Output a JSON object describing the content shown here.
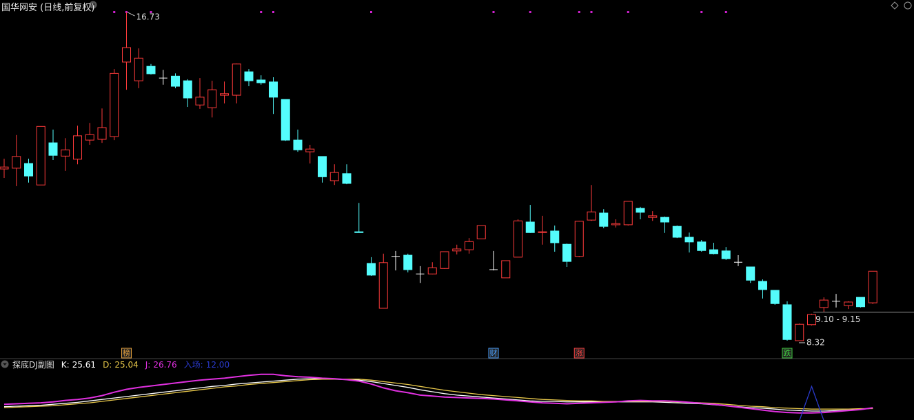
{
  "header": {
    "title": "国华网安 (日线,前复权)"
  },
  "chart_data": [
    {
      "type": "candlestick",
      "ylim": [
        7.86,
        17.05
      ],
      "up_color": "#ff3b3b",
      "down_color": "#54fcfc",
      "flat_color": "#ffffff",
      "open": [
        12.72,
        12.74,
        12.86,
        12.31,
        13.39,
        13.05,
        12.97,
        13.46,
        13.48,
        13.55,
        15.46,
        14.98,
        15.35,
        15.05,
        15.1,
        14.98,
        14.36,
        14.29,
        14.61,
        14.61,
        15.21,
        15.0,
        14.95,
        14.5,
        13.46,
        13.16,
        13.04,
        12.42,
        12.6,
        11.11,
        10.3,
        9.15,
        10.48,
        10.51,
        10.03,
        10.03,
        10.17,
        10.62,
        10.65,
        10.93,
        10.14,
        9.93,
        10.46,
        11.36,
        11.09,
        11.13,
        10.79,
        10.48,
        11.41,
        11.59,
        11.29,
        11.29,
        11.71,
        11.48,
        11.48,
        11.25,
        10.97,
        10.85,
        10.65,
        10.62,
        10.33,
        10.21,
        9.84,
        9.61,
        9.24,
        8.32,
        8.73,
        9.17,
        9.33,
        9.22,
        9.43,
        9.29
      ],
      "high": [
        12.98,
        13.59,
        12.98,
        13.81,
        13.73,
        13.51,
        13.83,
        13.9,
        14.27,
        15.28,
        16.73,
        15.81,
        15.41,
        15.26,
        15.17,
        15.02,
        15.05,
        14.98,
        14.96,
        15.42,
        15.28,
        15.12,
        15.07,
        14.5,
        13.73,
        13.34,
        13.04,
        12.84,
        12.84,
        11.85,
        10.46,
        10.55,
        10.62,
        10.55,
        10.23,
        10.33,
        10.6,
        10.78,
        10.95,
        11.27,
        10.62,
        10.37,
        11.43,
        11.8,
        11.52,
        11.27,
        10.81,
        11.39,
        12.31,
        11.69,
        11.43,
        11.89,
        11.75,
        11.64,
        11.5,
        11.27,
        11.09,
        10.9,
        10.83,
        10.72,
        10.51,
        10.21,
        9.89,
        9.61,
        9.33,
        8.76,
        9.01,
        9.43,
        9.52,
        9.33,
        9.43,
        10.1
      ],
      "low": [
        12.49,
        12.28,
        12.37,
        12.31,
        12.95,
        12.67,
        12.84,
        13.34,
        13.39,
        13.46,
        14.75,
        14.79,
        15.14,
        14.88,
        14.79,
        14.31,
        14.26,
        14.04,
        14.4,
        14.4,
        14.84,
        14.88,
        14.13,
        13.44,
        13.16,
        12.86,
        12.37,
        12.31,
        12.33,
        11.09,
        9.98,
        9.15,
        10.12,
        10.07,
        9.8,
        10.02,
        10.16,
        10.53,
        10.55,
        10.93,
        10.12,
        9.93,
        10.46,
        11.08,
        10.78,
        10.6,
        10.21,
        10.46,
        11.39,
        11.2,
        11.22,
        11.27,
        11.43,
        11.39,
        11.08,
        10.95,
        10.58,
        10.6,
        10.53,
        10.39,
        10.23,
        9.8,
        9.4,
        9.24,
        8.32,
        8.32,
        8.71,
        9.06,
        9.17,
        9.13,
        9.17,
        9.26
      ],
      "close": [
        12.77,
        13.04,
        12.54,
        13.81,
        13.07,
        13.21,
        13.57,
        13.6,
        13.78,
        15.17,
        15.83,
        15.56,
        15.16,
        15.05,
        14.84,
        14.54,
        14.56,
        14.75,
        14.65,
        15.41,
        14.98,
        14.93,
        14.56,
        13.46,
        13.21,
        13.23,
        12.52,
        12.63,
        12.35,
        11.09,
        10.0,
        10.32,
        10.48,
        10.14,
        10.03,
        10.19,
        10.6,
        10.67,
        10.86,
        11.27,
        10.14,
        10.37,
        11.39,
        11.09,
        11.11,
        10.83,
        10.35,
        11.38,
        11.62,
        11.25,
        11.32,
        11.89,
        11.61,
        11.52,
        11.36,
        10.97,
        10.85,
        10.63,
        10.55,
        10.42,
        10.33,
        9.87,
        9.63,
        9.27,
        8.35,
        8.74,
        8.99,
        9.36,
        9.33,
        9.31,
        9.19,
        10.1
      ],
      "range_label": "9.10 - 9.15",
      "range_line": 9.05,
      "markers": [
        {
          "index": 10,
          "label": "榜",
          "color": "#e8a33d"
        },
        {
          "index": 40,
          "label": "财",
          "color": "#4aa0ff"
        },
        {
          "index": 47,
          "label": "涨",
          "color": "#ff4040"
        },
        {
          "index": 64,
          "label": "跌",
          "color": "#40d040"
        }
      ],
      "signal_dots": [
        9,
        10,
        12,
        21,
        22,
        30,
        40,
        43,
        47,
        48,
        51,
        57,
        59
      ],
      "signal_color": "#d020d0"
    },
    {
      "type": "line",
      "title": "探底DJ副图",
      "ylim": [
        0,
        110
      ],
      "series": [
        {
          "name": "K:",
          "color": "#ffffff",
          "values": [
            29,
            30,
            31,
            32,
            34,
            36,
            38,
            41,
            44,
            47,
            50,
            53,
            56,
            59,
            62,
            65,
            68,
            71,
            73,
            76,
            78,
            80,
            82,
            84,
            86,
            87,
            87,
            86,
            85,
            84,
            81,
            77,
            73,
            69,
            64,
            60,
            56,
            53,
            51,
            49,
            47,
            45,
            43,
            41,
            40,
            40,
            39,
            39,
            39,
            39,
            39,
            39,
            39,
            39,
            38,
            37,
            36,
            35,
            33,
            31,
            29,
            27,
            26,
            24,
            22,
            21,
            20,
            20,
            21,
            22,
            24,
            25.61
          ]
        },
        {
          "name": "D:",
          "color": "#e8c84a",
          "values": [
            27,
            28,
            29,
            30,
            31,
            33,
            35,
            37,
            40,
            43,
            46,
            49,
            52,
            55,
            58,
            61,
            64,
            67,
            70,
            72,
            75,
            77,
            79,
            81,
            83,
            85,
            86,
            86,
            86,
            86,
            84,
            81,
            78,
            75,
            71,
            67,
            63,
            60,
            57,
            54,
            52,
            50,
            48,
            46,
            44,
            43,
            42,
            41,
            41,
            40,
            40,
            40,
            40,
            40,
            40,
            39,
            38,
            37,
            36,
            34,
            32,
            30,
            29,
            27,
            26,
            25,
            24,
            24,
            24,
            24,
            25,
            25.04
          ]
        },
        {
          "name": "J:",
          "color": "#e030e0",
          "values": [
            34,
            35,
            36,
            37,
            39,
            42,
            44,
            47,
            52,
            59,
            65,
            69,
            72,
            75,
            78,
            81,
            84,
            86,
            88,
            91,
            94,
            96,
            96,
            93,
            91,
            90,
            88,
            87,
            85,
            82,
            76,
            68,
            62,
            58,
            53,
            51,
            49,
            48,
            47,
            46,
            45,
            43,
            41,
            39,
            37,
            36,
            35,
            36,
            37,
            38,
            39,
            41,
            42,
            41,
            41,
            40,
            38,
            36,
            34,
            31,
            28,
            25,
            22,
            19,
            17,
            16,
            16,
            17,
            19,
            21,
            23,
            26.76
          ]
        },
        {
          "name": "入场:",
          "color": "#2a3acc",
          "legend_value": "12.00",
          "values": [
            null,
            null,
            null,
            null,
            null,
            null,
            null,
            null,
            null,
            null,
            null,
            null,
            null,
            null,
            null,
            null,
            null,
            null,
            null,
            null,
            null,
            null,
            null,
            null,
            null,
            null,
            null,
            null,
            null,
            null,
            null,
            null,
            null,
            null,
            null,
            null,
            null,
            null,
            null,
            null,
            null,
            null,
            null,
            null,
            null,
            null,
            null,
            null,
            null,
            null,
            null,
            null,
            null,
            null,
            null,
            null,
            null,
            null,
            null,
            null,
            null,
            null,
            null,
            null,
            null,
            0,
            71,
            0,
            null,
            null,
            null,
            null
          ]
        }
      ]
    }
  ]
}
